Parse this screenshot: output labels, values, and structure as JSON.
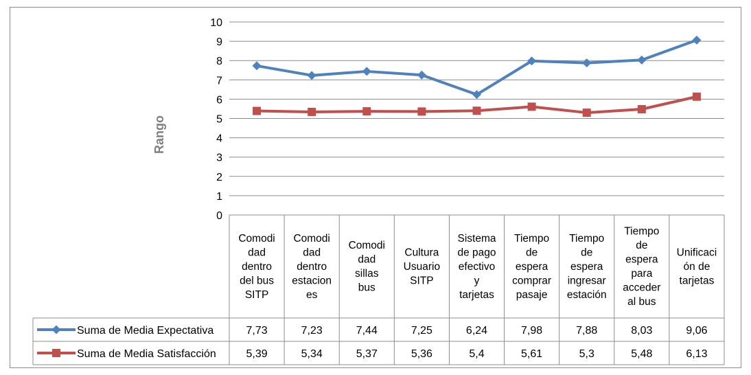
{
  "chart_data": {
    "type": "line",
    "title": "",
    "xlabel": "",
    "ylabel": "Rango",
    "ylim": [
      0,
      10
    ],
    "ytick_step": 1,
    "grid": true,
    "legend": "table-bottom-left",
    "categories": [
      [
        "Comodi",
        "dad",
        "dentro",
        "del bus",
        "SITP"
      ],
      [
        "Comodi",
        "dad",
        "dentro",
        "estacion",
        "es"
      ],
      [
        "Comodi",
        "dad",
        "sillas",
        "bus"
      ],
      [
        "Cultura",
        "Usuario",
        "SITP"
      ],
      [
        "Sistema",
        "de pago",
        "efectivo",
        "y",
        "tarjetas"
      ],
      [
        "Tiempo",
        "de",
        "espera",
        "comprar",
        "pasaje"
      ],
      [
        "Tiempo",
        "de",
        "espera",
        "ingresar",
        "estación"
      ],
      [
        "Tiempo",
        "de",
        "espera",
        "para",
        "acceder",
        "al bus"
      ],
      [
        "Unificaci",
        "ón de",
        "tarjetas"
      ]
    ],
    "series": [
      {
        "name": "Suma de Media Expectativa",
        "color": "#4f81bd",
        "marker": "diamond",
        "values": [
          7.73,
          7.23,
          7.44,
          7.25,
          6.24,
          7.98,
          7.88,
          8.03,
          9.06
        ],
        "labels": [
          "7,73",
          "7,23",
          "7,44",
          "7,25",
          "6,24",
          "7,98",
          "7,88",
          "8,03",
          "9,06"
        ]
      },
      {
        "name": "Suma de Media Satisfacción",
        "color": "#c0504d",
        "marker": "square",
        "values": [
          5.39,
          5.34,
          5.37,
          5.36,
          5.4,
          5.61,
          5.3,
          5.48,
          6.13
        ],
        "labels": [
          "5,39",
          "5,34",
          "5,37",
          "5,36",
          "5,4",
          "5,61",
          "5,3",
          "5,48",
          "6,13"
        ]
      }
    ]
  }
}
